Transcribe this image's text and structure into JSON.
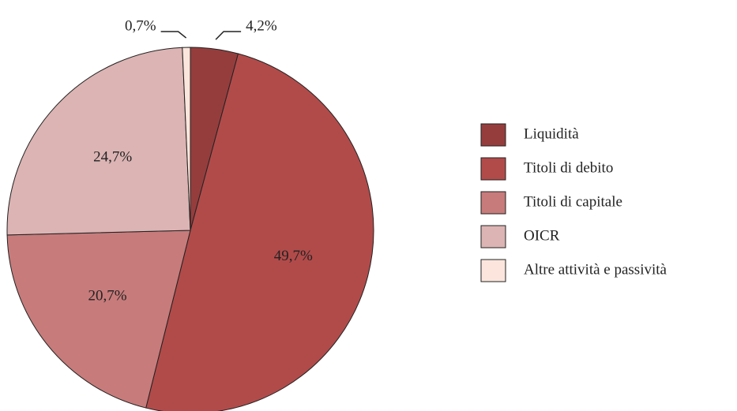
{
  "chart_data": {
    "type": "pie",
    "categories": [
      "Liquidità",
      "Titoli di debito",
      "Titoli di capitale",
      "OICR",
      "Altre attività e passività"
    ],
    "values": [
      4.2,
      49.7,
      20.7,
      24.7,
      0.7
    ],
    "value_labels": [
      "4,2%",
      "49,7%",
      "20,7%",
      "24,7%",
      "0,7%"
    ],
    "colors": [
      "#953d3d",
      "#b14b4a",
      "#c77b7b",
      "#dcb4b4",
      "#fbe5dc"
    ],
    "legend": "right"
  }
}
